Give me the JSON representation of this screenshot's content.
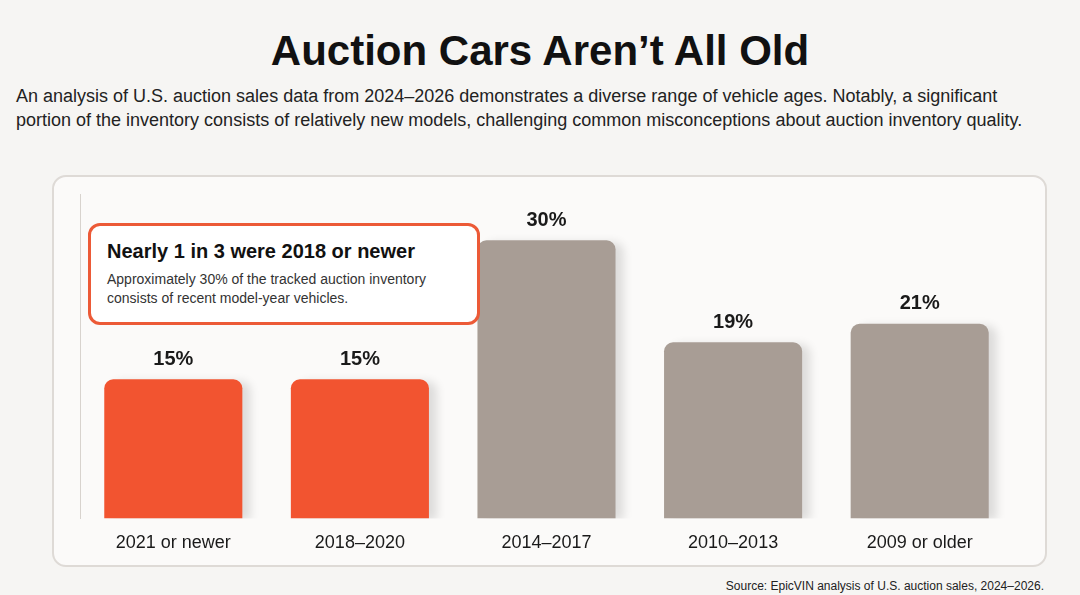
{
  "chart_data": {
    "type": "bar",
    "title": "Auction Cars Aren’t All Old",
    "subtitle": "An analysis of U.S. auction sales data from 2024–2026 demonstrates a diverse range of vehicle ages. Notably, a significant portion of the inventory consists of relatively new models, challenging common misconceptions about auction inventory quality.",
    "annotations": [
      "Nearly 1 in 3 were 2018 or newer",
      "Approximately 30% of the tracked auction inventory consists of recent model-year vehicles."
    ],
    "source": "Source: EpicVIN analysis of U.S. auction sales, 2024–2026.",
    "categories": [
      "2021 or newer",
      "2018–2020",
      "2014–2017",
      "2010–2013",
      "2009 or older"
    ],
    "values": [
      15,
      15,
      30,
      19,
      21
    ],
    "value_labels": [
      "15%",
      "15%",
      "30%",
      "19%",
      "21%"
    ],
    "colors": [
      "#f25430",
      "#f25430",
      "#a89d95",
      "#a89d95",
      "#a89d95"
    ],
    "ylim": [
      0,
      35
    ],
    "grid": false,
    "data_labels": true,
    "tick_labels": "x"
  }
}
